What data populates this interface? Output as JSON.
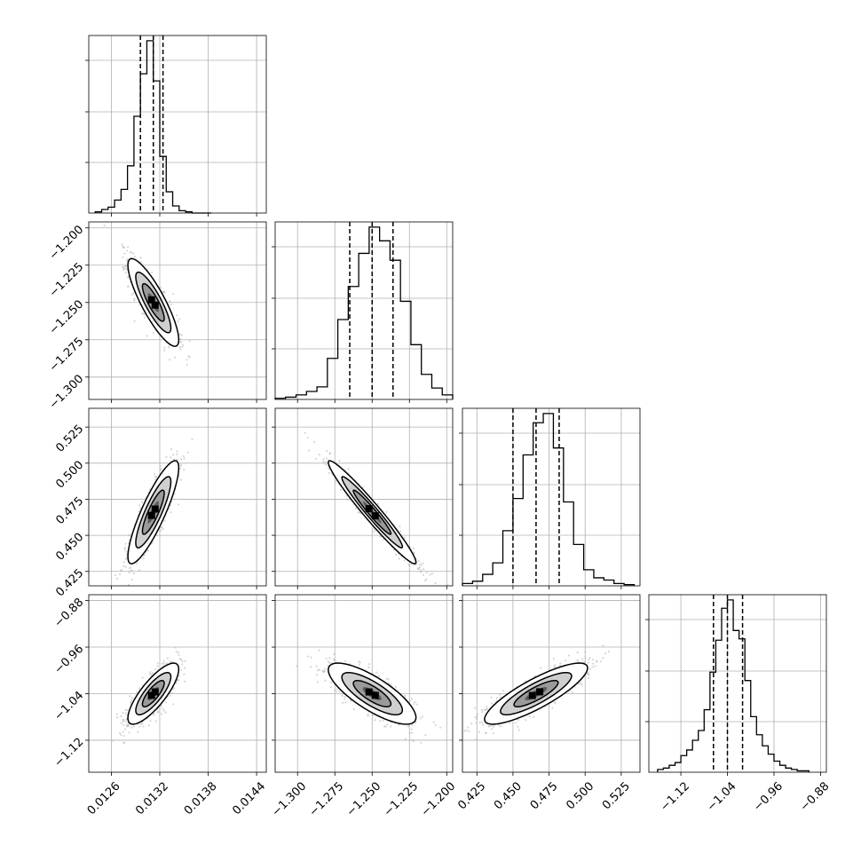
{
  "chart_data": {
    "type": "corner",
    "title": "",
    "parameters": [
      {
        "ticks": [
          0.0126,
          0.0132,
          0.0138,
          0.0144
        ],
        "tick_labels": [
          "0.0126",
          "0.0132",
          "0.0138",
          "0.0144"
        ],
        "range": [
          0.01232,
          0.01452
        ],
        "median": 0.01312,
        "quantiles": [
          0.01296,
          0.01312,
          0.01324
        ],
        "histogram": {
          "bin_edges": [
            0.0124,
            0.01248,
            0.01256,
            0.01264,
            0.01272,
            0.0128,
            0.01288,
            0.01296,
            0.01304,
            0.01312,
            0.0132,
            0.01328,
            0.01336,
            0.01344,
            0.01352,
            0.0136,
            0.01368,
            0.01376,
            0.01384
          ],
          "counts": [
            1,
            3,
            5,
            11,
            20,
            40,
            82,
            118,
            146,
            112,
            48,
            18,
            6,
            2,
            1,
            0,
            0,
            0
          ]
        }
      },
      {
        "ticks": [
          -1.3,
          -1.275,
          -1.25,
          -1.225,
          -1.2
        ],
        "tick_labels": [
          "−1.300",
          "−1.275",
          "−1.250",
          "−1.225",
          "−1.200"
        ],
        "range": [
          -1.315,
          -1.196
        ],
        "median": -1.25,
        "quantiles": [
          -1.265,
          -1.25,
          -1.236
        ],
        "histogram": {
          "bin_edges": [
            -1.315,
            -1.308,
            -1.301,
            -1.294,
            -1.287,
            -1.28,
            -1.273,
            -1.266,
            -1.259,
            -1.252,
            -1.245,
            -1.238,
            -1.231,
            -1.224,
            -1.217,
            -1.21,
            -1.203,
            -1.196
          ],
          "counts": [
            1,
            2,
            4,
            7,
            11,
            36,
            70,
            99,
            128,
            151,
            139,
            122,
            86,
            48,
            22,
            10,
            4
          ]
        }
      },
      {
        "ticks": [
          0.425,
          0.45,
          0.475,
          0.5,
          0.525
        ],
        "tick_labels": [
          "0.425",
          "0.450",
          "0.475",
          "0.500",
          "0.525"
        ],
        "range": [
          0.415,
          0.538
        ],
        "median": 0.466,
        "quantiles": [
          0.45,
          0.466,
          0.482
        ],
        "histogram": {
          "bin_edges": [
            0.415,
            0.422,
            0.429,
            0.436,
            0.443,
            0.45,
            0.457,
            0.464,
            0.471,
            0.478,
            0.485,
            0.492,
            0.499,
            0.506,
            0.513,
            0.52,
            0.527,
            0.534
          ],
          "counts": [
            2,
            4,
            10,
            20,
            48,
            76,
            114,
            142,
            150,
            120,
            73,
            36,
            14,
            7,
            5,
            2,
            1
          ]
        }
      },
      {
        "ticks": [
          -1.12,
          -1.04,
          -0.96,
          -0.88
        ],
        "tick_labels": [
          "−1.12",
          "−1.04",
          "−0.96",
          "−0.88"
        ],
        "range": [
          -1.175,
          -0.87
        ],
        "median": -1.04,
        "quantiles": [
          -1.064,
          -1.04,
          -1.014
        ],
        "histogram": {
          "bin_edges": [
            -1.16,
            -1.15,
            -1.14,
            -1.13,
            -1.12,
            -1.11,
            -1.1,
            -1.09,
            -1.08,
            -1.07,
            -1.06,
            -1.05,
            -1.04,
            -1.03,
            -1.02,
            -1.01,
            -1.0,
            -0.99,
            -0.98,
            -0.97,
            -0.96,
            -0.95,
            -0.94,
            -0.93,
            -0.92,
            -0.91,
            -0.9
          ],
          "counts": [
            2,
            3,
            5,
            7,
            12,
            16,
            23,
            30,
            45,
            72,
            95,
            118,
            124,
            102,
            96,
            66,
            40,
            27,
            19,
            13,
            8,
            5,
            3,
            2,
            1,
            1
          ]
        }
      }
    ],
    "pairs": [
      {
        "x": 0,
        "y": 1,
        "mean": [
          0.01312,
          -1.25
        ],
        "sd": [
          0.00015,
          0.014
        ],
        "corr": -0.85
      },
      {
        "x": 0,
        "y": 2,
        "mean": [
          0.01312,
          0.466
        ],
        "sd": [
          0.00015,
          0.017
        ],
        "corr": 0.86
      },
      {
        "x": 1,
        "y": 2,
        "mean": [
          -1.25,
          0.466
        ],
        "sd": [
          0.014,
          0.017
        ],
        "corr": -0.97
      },
      {
        "x": 0,
        "y": 3,
        "mean": [
          0.01312,
          -1.04
        ],
        "sd": [
          0.00015,
          0.025
        ],
        "corr": 0.8
      },
      {
        "x": 1,
        "y": 3,
        "mean": [
          -1.25,
          -1.04
        ],
        "sd": [
          0.014,
          0.025
        ],
        "corr": -0.78
      },
      {
        "x": 2,
        "y": 3,
        "mean": [
          0.466,
          -1.04
        ],
        "sd": [
          0.017,
          0.025
        ],
        "corr": 0.84
      }
    ],
    "grid": true,
    "colors": {
      "line": "#000000",
      "grid": "#b0b0b0",
      "scatter": "#b4b4b4",
      "density": "#000000"
    }
  }
}
